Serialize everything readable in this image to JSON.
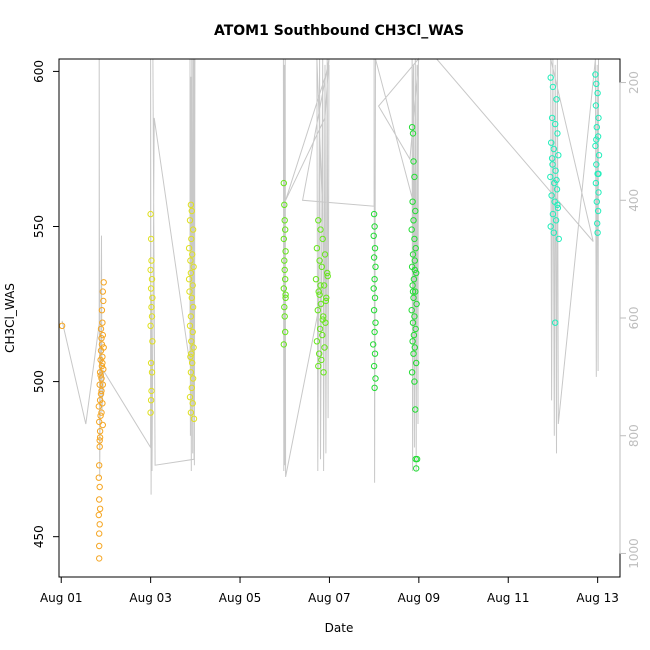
{
  "chart_data": {
    "type": "scatter",
    "title": "ATOM1 Southbound CH3Cl_WAS",
    "xlabel": "Date",
    "ylabel": "CH3Cl_WAS",
    "x_tick_labels": [
      "Aug 01",
      "Aug 03",
      "Aug 05",
      "Aug 07",
      "Aug 09",
      "Aug 11",
      "Aug 13"
    ],
    "x_tick_days": [
      1,
      3,
      5,
      7,
      9,
      11,
      13
    ],
    "xlim_days": [
      0.95,
      13.5
    ],
    "ylim": [
      437,
      604
    ],
    "y_ticks": [
      450,
      500,
      550,
      600
    ],
    "y2_ticks": [
      200,
      400,
      600,
      800,
      1000
    ],
    "y2_lim": [
      1040,
      160
    ],
    "y2_reversed": true,
    "grid": false,
    "colors": {
      "axis": "#000000",
      "altitude_line": "#c8c8c8",
      "right_axis": "#bebebe"
    },
    "series": [
      {
        "color": "#f5a623",
        "points": [
          [
            1.02,
            518
          ],
          [
            1.85,
            443
          ],
          [
            1.85,
            447
          ],
          [
            1.85,
            451
          ],
          [
            1.86,
            454
          ],
          [
            1.84,
            457
          ],
          [
            1.87,
            459
          ],
          [
            1.85,
            462
          ],
          [
            1.86,
            466
          ],
          [
            1.84,
            469
          ],
          [
            1.85,
            473
          ],
          [
            1.86,
            479
          ],
          [
            1.86,
            481
          ],
          [
            1.87,
            484
          ],
          [
            1.85,
            487
          ],
          [
            1.88,
            489
          ],
          [
            1.84,
            492
          ],
          [
            1.87,
            494
          ],
          [
            1.89,
            496
          ],
          [
            1.86,
            499
          ],
          [
            1.9,
            501
          ],
          [
            1.87,
            503
          ],
          [
            1.91,
            505
          ],
          [
            1.88,
            507
          ],
          [
            1.92,
            508
          ],
          [
            1.89,
            510
          ],
          [
            1.91,
            512
          ],
          [
            1.9,
            514
          ],
          [
            1.93,
            515
          ],
          [
            1.89,
            517
          ],
          [
            1.92,
            519
          ],
          [
            1.91,
            523
          ],
          [
            1.94,
            526
          ],
          [
            1.93,
            529
          ],
          [
            1.95,
            532
          ],
          [
            1.9,
            497
          ],
          [
            1.93,
            499
          ],
          [
            1.88,
            502
          ],
          [
            1.94,
            504
          ],
          [
            1.92,
            506
          ],
          [
            1.9,
            490
          ],
          [
            1.93,
            486
          ],
          [
            1.87,
            482
          ],
          [
            1.92,
            493
          ],
          [
            1.95,
            511
          ]
        ]
      },
      {
        "color": "#e0e020",
        "points": [
          [
            3.0,
            554
          ],
          [
            3.01,
            546
          ],
          [
            3.02,
            539
          ],
          [
            3.0,
            536
          ],
          [
            3.03,
            533
          ],
          [
            3.01,
            530
          ],
          [
            3.04,
            527
          ],
          [
            3.02,
            524
          ],
          [
            3.03,
            521
          ],
          [
            3.0,
            518
          ],
          [
            3.04,
            513
          ],
          [
            3.01,
            506
          ],
          [
            3.03,
            503
          ],
          [
            3.02,
            497
          ],
          [
            3.01,
            494
          ],
          [
            3.0,
            490
          ],
          [
            3.9,
            557
          ],
          [
            3.92,
            555
          ],
          [
            3.88,
            552
          ],
          [
            3.95,
            549
          ],
          [
            3.91,
            546
          ],
          [
            3.86,
            543
          ],
          [
            3.93,
            541
          ],
          [
            3.89,
            539
          ],
          [
            3.96,
            537
          ],
          [
            3.9,
            535
          ],
          [
            3.94,
            531
          ],
          [
            3.87,
            529
          ],
          [
            3.92,
            527
          ],
          [
            3.95,
            524
          ],
          [
            3.9,
            521
          ],
          [
            3.88,
            518
          ],
          [
            3.94,
            516
          ],
          [
            3.91,
            513
          ],
          [
            3.96,
            511
          ],
          [
            3.89,
            508
          ],
          [
            3.93,
            506
          ],
          [
            3.9,
            503
          ],
          [
            3.95,
            501
          ],
          [
            3.92,
            498
          ],
          [
            3.88,
            495
          ],
          [
            3.94,
            493
          ],
          [
            3.9,
            490
          ],
          [
            3.97,
            488
          ],
          [
            3.91,
            509
          ],
          [
            3.86,
            533
          ]
        ]
      },
      {
        "color": "#66e61a",
        "points": [
          [
            5.98,
            564
          ],
          [
            5.99,
            557
          ],
          [
            6.0,
            552
          ],
          [
            6.01,
            549
          ],
          [
            5.98,
            546
          ],
          [
            6.02,
            542
          ],
          [
            5.99,
            539
          ],
          [
            6.0,
            536
          ],
          [
            6.01,
            533
          ],
          [
            5.98,
            530
          ],
          [
            6.02,
            527
          ],
          [
            5.99,
            524
          ],
          [
            6.0,
            521
          ],
          [
            6.01,
            516
          ],
          [
            5.98,
            512
          ],
          [
            6.02,
            528
          ],
          [
            6.75,
            552
          ],
          [
            6.8,
            549
          ],
          [
            6.85,
            546
          ],
          [
            6.72,
            543
          ],
          [
            6.9,
            541
          ],
          [
            6.78,
            539
          ],
          [
            6.83,
            537
          ],
          [
            6.95,
            535
          ],
          [
            6.7,
            533
          ],
          [
            6.88,
            531
          ],
          [
            6.76,
            529
          ],
          [
            6.93,
            527
          ],
          [
            6.81,
            525
          ],
          [
            6.74,
            523
          ],
          [
            6.86,
            521
          ],
          [
            6.91,
            519
          ],
          [
            6.79,
            517
          ],
          [
            6.84,
            515
          ],
          [
            6.72,
            513
          ],
          [
            6.89,
            511
          ],
          [
            6.77,
            509
          ],
          [
            6.82,
            507
          ],
          [
            6.75,
            505
          ],
          [
            6.87,
            503
          ],
          [
            6.92,
            526
          ],
          [
            6.8,
            531
          ],
          [
            6.85,
            520
          ],
          [
            6.78,
            528
          ],
          [
            6.96,
            534
          ]
        ]
      },
      {
        "color": "#22dd33",
        "points": [
          [
            8.0,
            554
          ],
          [
            8.01,
            550
          ],
          [
            7.99,
            547
          ],
          [
            8.02,
            543
          ],
          [
            8.0,
            540
          ],
          [
            8.03,
            537
          ],
          [
            8.01,
            533
          ],
          [
            7.99,
            530
          ],
          [
            8.02,
            527
          ],
          [
            8.0,
            523
          ],
          [
            8.03,
            519
          ],
          [
            8.01,
            516
          ],
          [
            7.98,
            512
          ],
          [
            8.02,
            509
          ],
          [
            8.0,
            505
          ],
          [
            8.03,
            501
          ],
          [
            8.01,
            498
          ],
          [
            8.85,
            582
          ],
          [
            8.87,
            580
          ],
          [
            8.88,
            571
          ],
          [
            8.9,
            566
          ],
          [
            8.86,
            558
          ],
          [
            8.92,
            555
          ],
          [
            8.88,
            552
          ],
          [
            8.84,
            549
          ],
          [
            8.9,
            546
          ],
          [
            8.93,
            543
          ],
          [
            8.87,
            541
          ],
          [
            8.91,
            539
          ],
          [
            8.85,
            537
          ],
          [
            8.94,
            535
          ],
          [
            8.89,
            533
          ],
          [
            8.86,
            531
          ],
          [
            8.92,
            529
          ],
          [
            8.88,
            527
          ],
          [
            8.95,
            525
          ],
          [
            8.84,
            523
          ],
          [
            8.9,
            521
          ],
          [
            8.87,
            519
          ],
          [
            8.93,
            517
          ],
          [
            8.89,
            515
          ],
          [
            8.86,
            513
          ],
          [
            8.91,
            511
          ],
          [
            8.88,
            509
          ],
          [
            8.94,
            506
          ],
          [
            8.85,
            503
          ],
          [
            8.9,
            500
          ],
          [
            8.92,
            491
          ],
          [
            8.93,
            475
          ],
          [
            8.96,
            475
          ],
          [
            8.94,
            472
          ],
          [
            8.91,
            536
          ],
          [
            8.87,
            529
          ]
        ]
      },
      {
        "color": "#22eebb",
        "points": [
          [
            11.95,
            598
          ],
          [
            12.0,
            595
          ],
          [
            12.08,
            591
          ],
          [
            11.98,
            585
          ],
          [
            12.05,
            583
          ],
          [
            12.1,
            580
          ],
          [
            11.96,
            577
          ],
          [
            12.02,
            575
          ],
          [
            12.12,
            573
          ],
          [
            11.99,
            570
          ],
          [
            12.06,
            568
          ],
          [
            11.94,
            566
          ],
          [
            12.03,
            564
          ],
          [
            12.09,
            562
          ],
          [
            11.97,
            560
          ],
          [
            12.04,
            558
          ],
          [
            12.11,
            556
          ],
          [
            12.0,
            554
          ],
          [
            12.07,
            552
          ],
          [
            11.95,
            550
          ],
          [
            12.02,
            548
          ],
          [
            12.13,
            546
          ],
          [
            12.05,
            519
          ],
          [
            12.08,
            565
          ],
          [
            11.98,
            572
          ],
          [
            12.1,
            557
          ],
          [
            12.95,
            599
          ],
          [
            12.97,
            596
          ],
          [
            13.0,
            593
          ],
          [
            12.96,
            589
          ],
          [
            13.02,
            585
          ],
          [
            12.98,
            582
          ],
          [
            13.01,
            579
          ],
          [
            12.95,
            576
          ],
          [
            13.03,
            573
          ],
          [
            12.97,
            570
          ],
          [
            13.0,
            567
          ],
          [
            12.96,
            564
          ],
          [
            13.02,
            561
          ],
          [
            12.98,
            558
          ],
          [
            13.01,
            555
          ],
          [
            12.99,
            551
          ],
          [
            13.0,
            548
          ],
          [
            12.97,
            578
          ],
          [
            13.02,
            567
          ]
        ]
      }
    ],
    "altitude_track": [
      [
        1.02,
        605
      ],
      [
        1.55,
        780
      ],
      [
        1.85,
        610
      ],
      [
        1.85,
        160
      ],
      [
        1.86,
        870
      ],
      [
        1.88,
        640
      ],
      [
        1.88,
        720
      ],
      [
        1.9,
        460
      ],
      [
        1.91,
        760
      ],
      [
        1.95,
        690
      ],
      [
        3.0,
        820
      ],
      [
        3.0,
        160
      ],
      [
        3.01,
        900
      ],
      [
        3.02,
        560
      ],
      [
        3.03,
        860
      ],
      [
        3.08,
        260
      ],
      [
        3.88,
        680
      ],
      [
        3.88,
        160
      ],
      [
        3.89,
        800
      ],
      [
        3.9,
        190
      ],
      [
        3.91,
        860
      ],
      [
        3.92,
        160
      ],
      [
        3.94,
        830
      ],
      [
        3.95,
        160
      ],
      [
        3.96,
        750
      ],
      [
        3.97,
        160
      ],
      [
        3.98,
        850
      ],
      [
        3.99,
        160
      ],
      [
        3.97,
        840
      ],
      [
        3.1,
        850
      ],
      [
        3.05,
        160
      ],
      [
        5.97,
        160
      ],
      [
        5.98,
        860
      ],
      [
        5.99,
        170
      ],
      [
        6.0,
        850
      ],
      [
        6.01,
        160
      ],
      [
        6.02,
        870
      ],
      [
        6.9,
        530
      ],
      [
        6.72,
        160
      ],
      [
        6.74,
        860
      ],
      [
        6.78,
        160
      ],
      [
        6.8,
        840
      ],
      [
        6.85,
        160
      ],
      [
        6.87,
        860
      ],
      [
        6.9,
        170
      ],
      [
        6.92,
        830
      ],
      [
        6.95,
        160
      ],
      [
        6.97,
        770
      ],
      [
        6.99,
        170
      ],
      [
        6.02,
        400
      ],
      [
        6.9,
        260
      ],
      [
        6.99,
        160
      ],
      [
        6.4,
        400
      ],
      [
        8.0,
        410
      ],
      [
        8.0,
        160
      ],
      [
        8.01,
        880
      ],
      [
        8.03,
        160
      ],
      [
        8.9,
        410
      ],
      [
        8.85,
        160
      ],
      [
        8.86,
        860
      ],
      [
        8.88,
        170
      ],
      [
        8.9,
        820
      ],
      [
        8.92,
        160
      ],
      [
        8.94,
        860
      ],
      [
        8.96,
        170
      ],
      [
        8.98,
        780
      ],
      [
        8.99,
        160
      ],
      [
        8.1,
        240
      ],
      [
        8.8,
        330
      ],
      [
        9.0,
        160
      ],
      [
        9.4,
        160
      ],
      [
        12.9,
        470
      ],
      [
        11.95,
        160
      ],
      [
        11.97,
        740
      ],
      [
        12.0,
        160
      ],
      [
        12.03,
        800
      ],
      [
        12.05,
        170
      ],
      [
        12.08,
        830
      ],
      [
        12.1,
        160
      ],
      [
        12.12,
        780
      ],
      [
        12.95,
        160
      ],
      [
        12.97,
        700
      ],
      [
        12.99,
        170
      ],
      [
        13.01,
        690
      ],
      [
        13.02,
        160
      ]
    ]
  }
}
